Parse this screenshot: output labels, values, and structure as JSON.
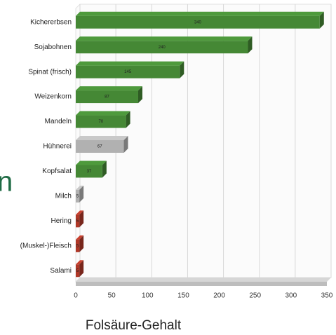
{
  "chart_data": {
    "type": "bar",
    "orientation": "horizontal",
    "x_title": "Folsäure-Gehalt",
    "side_text": "n",
    "categories": [
      "Kichererbsen",
      "Sojabohnen",
      "Spinat (frisch)",
      "Weizenkorn",
      "Mandeln",
      "Hühnerei",
      "Kopfsalat",
      "Milch",
      "Hering",
      "(Muskel-)Fleisch",
      "Salami"
    ],
    "values": [
      340,
      240,
      145,
      87,
      70,
      67,
      37,
      5,
      5,
      5,
      5
    ],
    "colors": [
      "#4e9a3c",
      "#4e9a3c",
      "#4e9a3c",
      "#4e9a3c",
      "#4e9a3c",
      "#c9c9c9",
      "#4e9a3c",
      "#c9c9c9",
      "#c8402e",
      "#c8402e",
      "#c8402e"
    ],
    "xlim": [
      0,
      350
    ],
    "xticks": [
      0,
      50,
      100,
      150,
      200,
      250,
      300,
      350
    ],
    "grid": true
  }
}
